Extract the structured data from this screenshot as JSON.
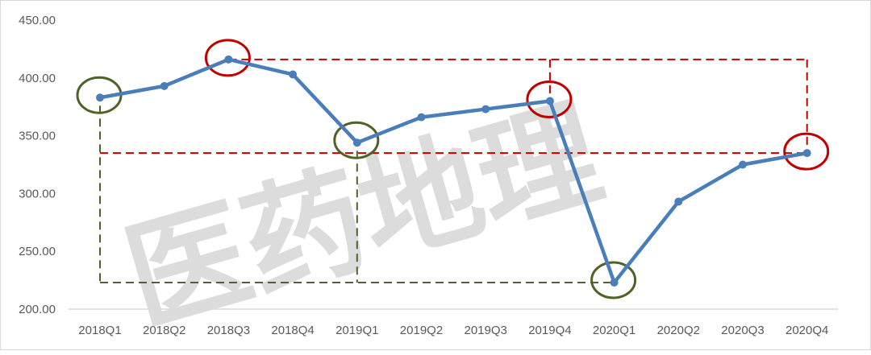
{
  "chart_data": {
    "type": "line",
    "categories": [
      "2018Q1",
      "2018Q2",
      "2018Q3",
      "2018Q4",
      "2019Q1",
      "2019Q2",
      "2019Q3",
      "2019Q4",
      "2020Q1",
      "2020Q2",
      "2020Q3",
      "2020Q4"
    ],
    "series": [
      {
        "values": [
          383,
          393,
          416,
          403,
          344,
          366,
          373,
          380,
          223,
          293,
          325,
          335
        ]
      }
    ],
    "ylim": [
      200,
      450
    ],
    "yticks": [
      "200.00",
      "250.00",
      "300.00",
      "350.00",
      "400.00",
      "450.00"
    ],
    "grid": false,
    "legend": "none",
    "annotations": {
      "red_circles": [
        "2018Q3",
        "2019Q4",
        "2020Q4"
      ],
      "green_circles": [
        "2018Q1",
        "2019Q1",
        "2020Q1"
      ]
    },
    "colors": {
      "line": "#4a7ebb",
      "red": "#c00000",
      "green": "#4f6228",
      "axis": "#d9d9d9"
    }
  },
  "watermark": "医药地理"
}
